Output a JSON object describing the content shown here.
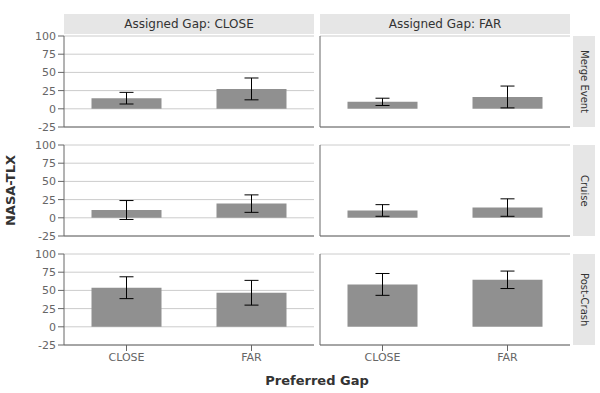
{
  "chart_data": {
    "type": "bar",
    "xlabel": "Preferred Gap",
    "ylabel": "NASA-TLX",
    "color": "#909090",
    "ylim": [
      -25,
      100
    ],
    "yticks": [
      -25,
      0,
      25,
      50,
      75,
      100
    ],
    "grid": true,
    "categories": [
      "CLOSE",
      "FAR"
    ],
    "facet_columns": [
      "Assigned Gap: CLOSE",
      "Assigned Gap: FAR"
    ],
    "facet_rows": [
      "Merge Event",
      "Cruise",
      "Post-Crash"
    ],
    "panels": [
      [
        {
          "values": [
            14.58,
            27.31
          ],
          "errors": [
            8.0,
            15.0
          ]
        },
        {
          "values": [
            9.54,
            16.25
          ],
          "errors": [
            5.0,
            15.0
          ]
        }
      ],
      [
        {
          "values": [
            10.69,
            19.49
          ],
          "errors": [
            13.0,
            12.0
          ]
        },
        {
          "values": [
            10.07,
            14.05
          ],
          "errors": [
            8.0,
            12.0
          ]
        }
      ],
      [
        {
          "values": [
            53.7,
            46.78
          ],
          "errors": [
            15.0,
            17.0
          ]
        },
        {
          "values": [
            58.23,
            64.56
          ],
          "errors": [
            15.0,
            12.0
          ]
        }
      ]
    ]
  }
}
